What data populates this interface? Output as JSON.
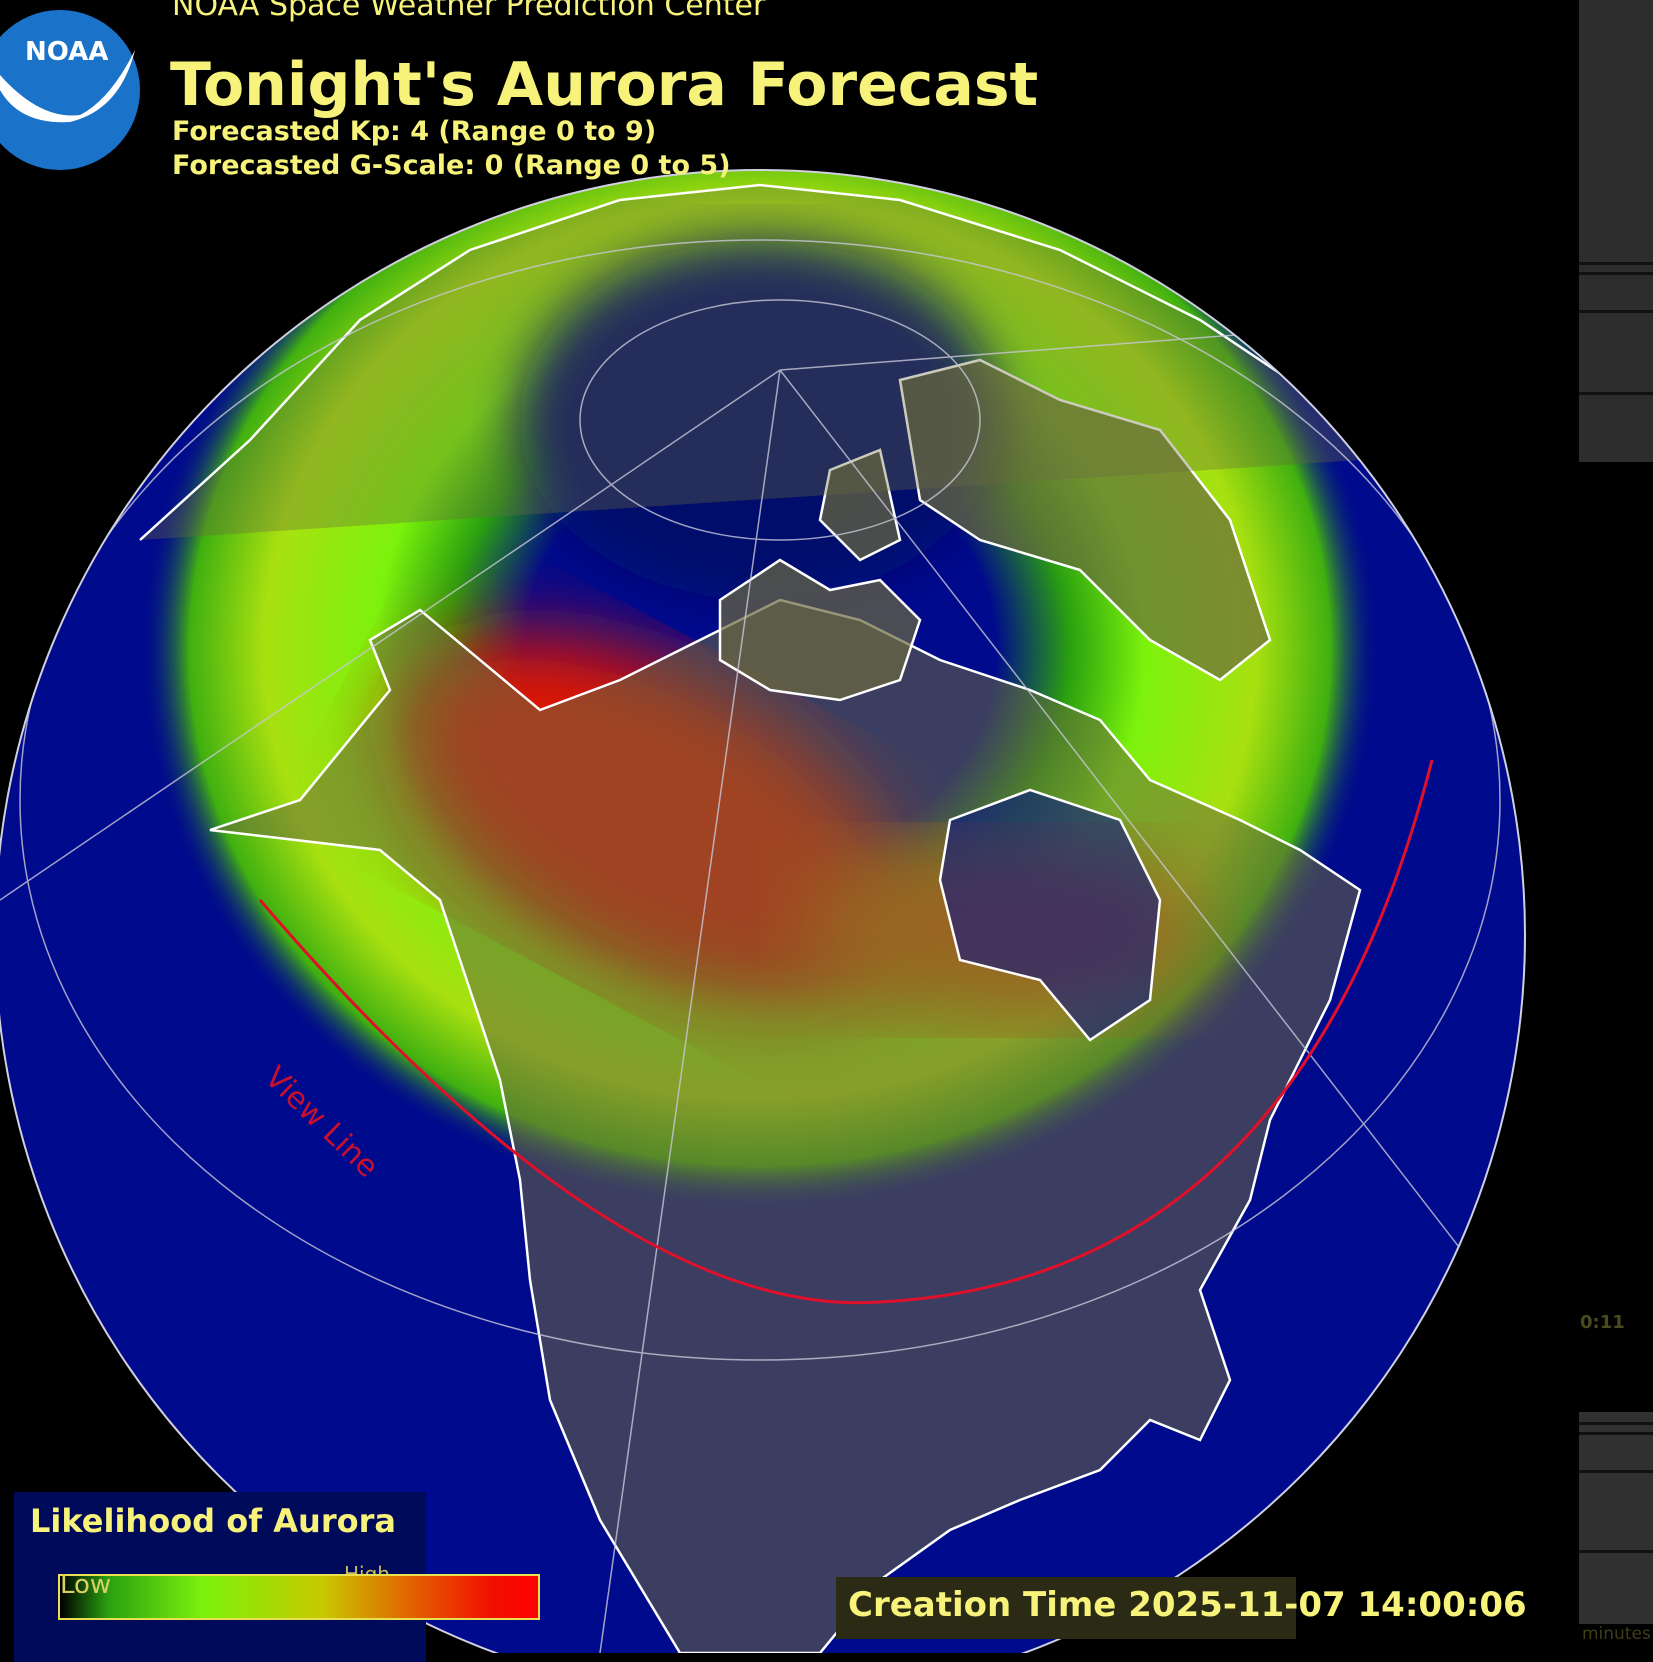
{
  "header": {
    "organization": "NOAA Space Weather Prediction Center",
    "title": "Tonight's Aurora Forecast",
    "kp_line": "Forecasted Kp: 4 (Range 0 to 9)",
    "gscale_line": "Forecasted G-Scale: 0 (Range 0 to 5)",
    "logo_text": "NOAA"
  },
  "forecast": {
    "kp": 4,
    "kp_range": [
      0,
      9
    ],
    "g_scale": 0,
    "g_scale_range": [
      0,
      5
    ]
  },
  "map": {
    "view_line_label": "View Line",
    "ocean_color": "#000a8c",
    "land_color": "#6b6a3e",
    "view_line_color": "#e0102a"
  },
  "legend": {
    "title": "Likelihood of Aurora",
    "low_label": "Low",
    "high_label": "High",
    "colors": [
      "#000000",
      "#7cf20c",
      "#c8c800",
      "#ff0000"
    ]
  },
  "footer": {
    "creation_time": "Creation Time 2025-11-07 14:00:06"
  },
  "side_panel": {
    "timestamp_fragment": "0:11",
    "minutes_fragment": "minutes"
  }
}
